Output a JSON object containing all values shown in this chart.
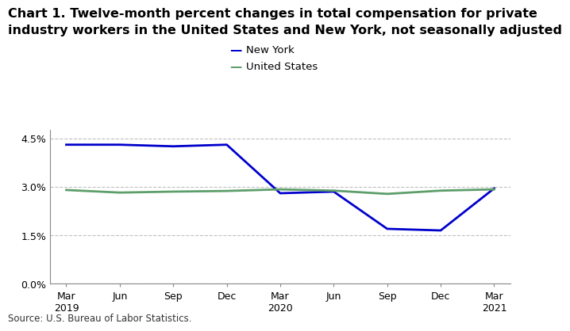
{
  "title_line1": "Chart 1. Twelve-month percent changes in total compensation for private",
  "title_line2": "industry workers in the United States and New York, not seasonally adjusted",
  "x_labels": [
    "Mar\n2019",
    "Jun",
    "Sep",
    "Dec",
    "Mar\n2020",
    "Jun",
    "Sep",
    "Dec",
    "Mar\n2021"
  ],
  "new_york": [
    4.3,
    4.3,
    4.25,
    4.3,
    2.8,
    2.85,
    1.7,
    1.65,
    2.95
  ],
  "united_states": [
    2.9,
    2.82,
    2.85,
    2.87,
    2.92,
    2.88,
    2.78,
    2.88,
    2.92
  ],
  "ny_color": "#0000CC",
  "us_color": "#5D9E6B",
  "ny_label": "New York",
  "us_label": "United States",
  "ylim": [
    0.0,
    4.75
  ],
  "yticks": [
    0.0,
    1.5,
    3.0,
    4.5
  ],
  "source": "Source: U.S. Bureau of Labor Statistics.",
  "background_color": "#ffffff",
  "grid_color": "#c0c0c0",
  "title_fontsize": 11.5,
  "legend_fontsize": 9.5,
  "tick_fontsize": 9,
  "source_fontsize": 8.5,
  "linewidth": 2.0
}
